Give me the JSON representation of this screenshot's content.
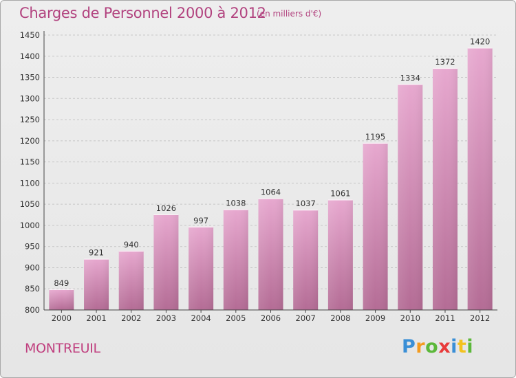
{
  "title": "Charges de Personnel 2000 à 2012",
  "subtitle": "(en milliers d'€)",
  "commune": "MONTREUIL",
  "logo": {
    "letters": [
      "P",
      "r",
      "o",
      "x",
      "i",
      "t",
      "i"
    ],
    "colors": [
      "#3a8fd6",
      "#f39b1f",
      "#5cb83a",
      "#e83a3a",
      "#3a8fd6",
      "#f3c21f",
      "#5cb83a"
    ]
  },
  "colors": {
    "title": "#b2437f",
    "bar_top": "#e7a8cf",
    "bar_bottom": "#b46c95"
  },
  "chart_data": {
    "type": "bar",
    "title": "Charges de Personnel 2000 à 2012",
    "subtitle": "(en milliers d'€)",
    "categories": [
      "2000",
      "2001",
      "2002",
      "2003",
      "2004",
      "2005",
      "2006",
      "2007",
      "2008",
      "2009",
      "2010",
      "2011",
      "2012"
    ],
    "values": [
      849,
      921,
      940,
      1026,
      997,
      1038,
      1064,
      1037,
      1061,
      1195,
      1334,
      1372,
      1420
    ],
    "data_labels": [
      "849",
      "921",
      "940",
      "1026",
      "997",
      "1038",
      "1064",
      "1037",
      "1061",
      "1195",
      "1334",
      "1372",
      "1420"
    ],
    "yticks": [
      800,
      850,
      900,
      950,
      1000,
      1050,
      1100,
      1150,
      1200,
      1250,
      1300,
      1350,
      1400,
      1450
    ],
    "ylim": [
      800,
      1450
    ],
    "grid": true,
    "legend": "none"
  }
}
